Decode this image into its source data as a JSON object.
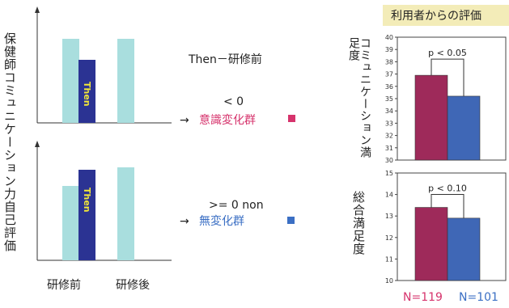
{
  "left": {
    "ylabel": "保健師コミュニケーション力自己評価",
    "categories": [
      "研修前",
      "研修後"
    ],
    "then_label": "Then",
    "top_panel": {
      "pre_bar": 1.0,
      "then_bar": 0.75,
      "post_bar": 1.0
    },
    "bottom_panel": {
      "pre_bar": 0.85,
      "then_bar": 1.0,
      "post_bar": 1.05
    }
  },
  "middle": {
    "heading": "Then－研修前",
    "cond1": "< 0",
    "arrow1": "→",
    "group1": "意識変化群",
    "cond2": ">= 0  non",
    "arrow2": "→",
    "group2": "無変化群",
    "group1_color": "#d6336c",
    "group2_color": "#3b6fc4"
  },
  "right": {
    "title": "利用者からの評価",
    "n_labels": [
      "N=119",
      "N=101"
    ]
  },
  "chart_data": [
    {
      "type": "bar",
      "ylabel": "コミュニケーション満足度",
      "ylim": [
        30,
        40
      ],
      "yticks": [
        "30",
        "31",
        "32",
        "33",
        "34",
        "35",
        "36",
        "37",
        "38",
        "39",
        "40"
      ],
      "series": [
        {
          "name": "意識変化群",
          "values": [
            36.9
          ]
        },
        {
          "name": "無変化群",
          "values": [
            35.2
          ]
        }
      ],
      "annotation": "p < 0.05",
      "colors": [
        "#9e2a5a",
        "#3f67b6"
      ]
    },
    {
      "type": "bar",
      "ylabel": "総合満足度",
      "ylim": [
        10,
        15
      ],
      "yticks": [
        "10",
        "11",
        "12",
        "13",
        "14",
        "15"
      ],
      "series": [
        {
          "name": "意識変化群",
          "values": [
            13.4
          ]
        },
        {
          "name": "無変化群",
          "values": [
            12.9
          ]
        }
      ],
      "annotation": "p < 0.10",
      "colors": [
        "#9e2a5a",
        "#3f67b6"
      ]
    }
  ]
}
